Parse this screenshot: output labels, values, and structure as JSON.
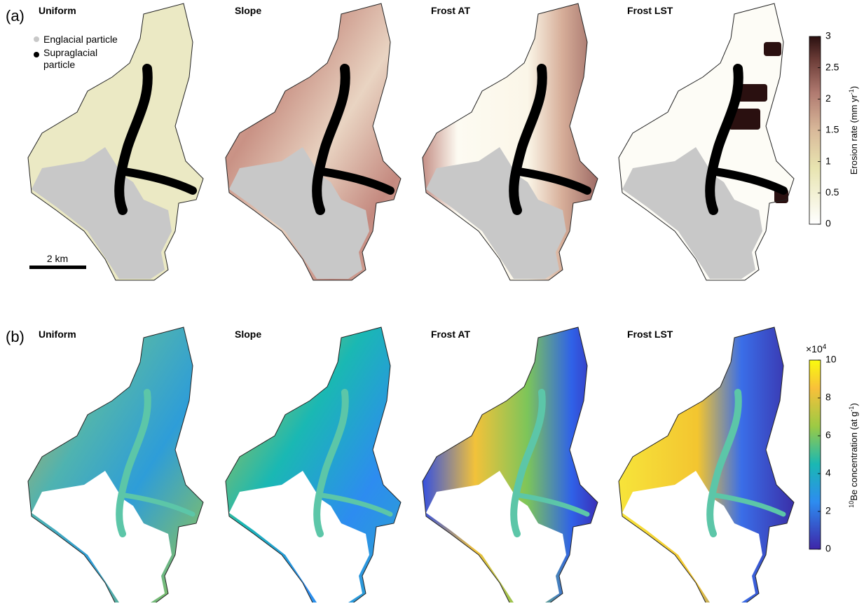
{
  "panels": {
    "a": {
      "label": "(a)",
      "titles": [
        "Uniform",
        "Slope",
        "Frost AT",
        "Frost LST"
      ]
    },
    "b": {
      "label": "(b)",
      "titles": [
        "Uniform",
        "Slope",
        "Frost AT",
        "Frost LST"
      ]
    }
  },
  "legend": {
    "englacial": "Englacial particle",
    "supraglacial": [
      "Supraglacial",
      "particle"
    ]
  },
  "scale_bar": "2 km",
  "colorbar_a": {
    "label": {
      "main": "Erosion rate (mm yr",
      "sup": "-1",
      "end": ")"
    },
    "lim": [
      0,
      3
    ],
    "ticks": [
      0,
      0.5,
      1,
      1.5,
      2,
      2.5,
      3
    ]
  },
  "colorbar_b": {
    "multiplier": {
      "base": "×10",
      "exponent": "4"
    },
    "label": {
      "pre": "10",
      "main": "Be concentration (at g",
      "sup": "-1",
      "end": ")"
    },
    "lim": [
      0,
      10
    ],
    "ticks": [
      0,
      2,
      4,
      6,
      8,
      10
    ]
  }
}
